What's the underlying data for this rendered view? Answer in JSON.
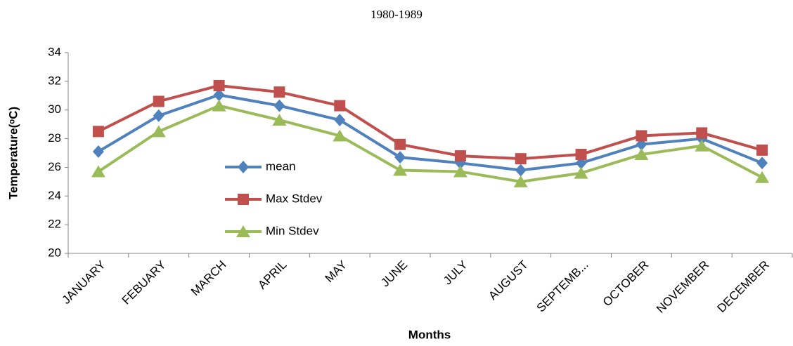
{
  "chart_data": {
    "type": "line",
    "title": "1980-1989",
    "x_label": "Months",
    "y_label": "Temperature(ᵒC)",
    "categories": [
      "JANUARY",
      "FEBUARY",
      "MARCH",
      "APRIL",
      "MAY",
      "JUNE",
      "JULY",
      "AUGUST",
      "SEPTEMB...",
      "OCTOBER",
      "NOVEMBER",
      "DECEMBER"
    ],
    "series": [
      {
        "name": "mean",
        "color": "#4f81bd",
        "marker": "diamond",
        "values": [
          27.1,
          29.6,
          31.05,
          30.3,
          29.3,
          26.7,
          26.3,
          25.8,
          26.3,
          27.6,
          28.0,
          26.3
        ]
      },
      {
        "name": "Max Stdev",
        "color": "#c0504d",
        "marker": "square",
        "values": [
          28.5,
          30.6,
          31.7,
          31.25,
          30.3,
          27.6,
          26.8,
          26.6,
          26.9,
          28.2,
          28.4,
          27.2
        ]
      },
      {
        "name": "Min Stdev",
        "color": "#9bbb59",
        "marker": "triangle",
        "values": [
          25.7,
          28.5,
          30.3,
          29.3,
          28.2,
          25.8,
          25.7,
          25.0,
          25.6,
          26.9,
          27.5,
          25.3
        ]
      }
    ],
    "ylim": [
      20,
      34
    ],
    "yticks": [
      20,
      22,
      24,
      26,
      28,
      30,
      32,
      34
    ],
    "grid": false,
    "legend_position": "center-left"
  }
}
